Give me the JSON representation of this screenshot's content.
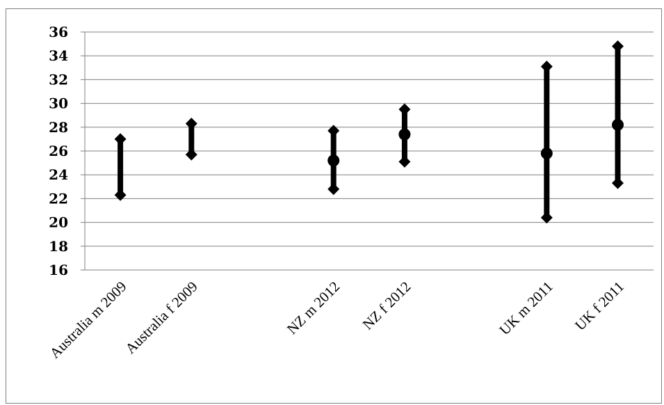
{
  "chart_data": {
    "type": "scatter",
    "title": "",
    "xlabel": "",
    "ylabel": "",
    "ylim": [
      16,
      36
    ],
    "y_ticks": [
      "16",
      "18",
      "20",
      "22",
      "24",
      "26",
      "28",
      "30",
      "32",
      "34",
      "36"
    ],
    "grid": true,
    "categories": [
      "Australia m 2009",
      "Australia f 2009",
      "",
      "NZ m 2012",
      "NZ f 2012",
      "",
      "UK m 2011",
      "UK f 2011"
    ],
    "series": [
      {
        "values": [
          27.0,
          28.3,
          null,
          27.7,
          29.5,
          null,
          33.1,
          34.8
        ]
      },
      {
        "values": [
          null,
          null,
          null,
          25.2,
          27.4,
          null,
          25.8,
          28.2
        ]
      },
      {
        "values": [
          22.3,
          25.7,
          null,
          22.8,
          25.1,
          null,
          20.4,
          23.3
        ]
      }
    ],
    "colors": {
      "marks": "#000000",
      "grid": "#808080",
      "frame": "#7f7f7f"
    }
  }
}
